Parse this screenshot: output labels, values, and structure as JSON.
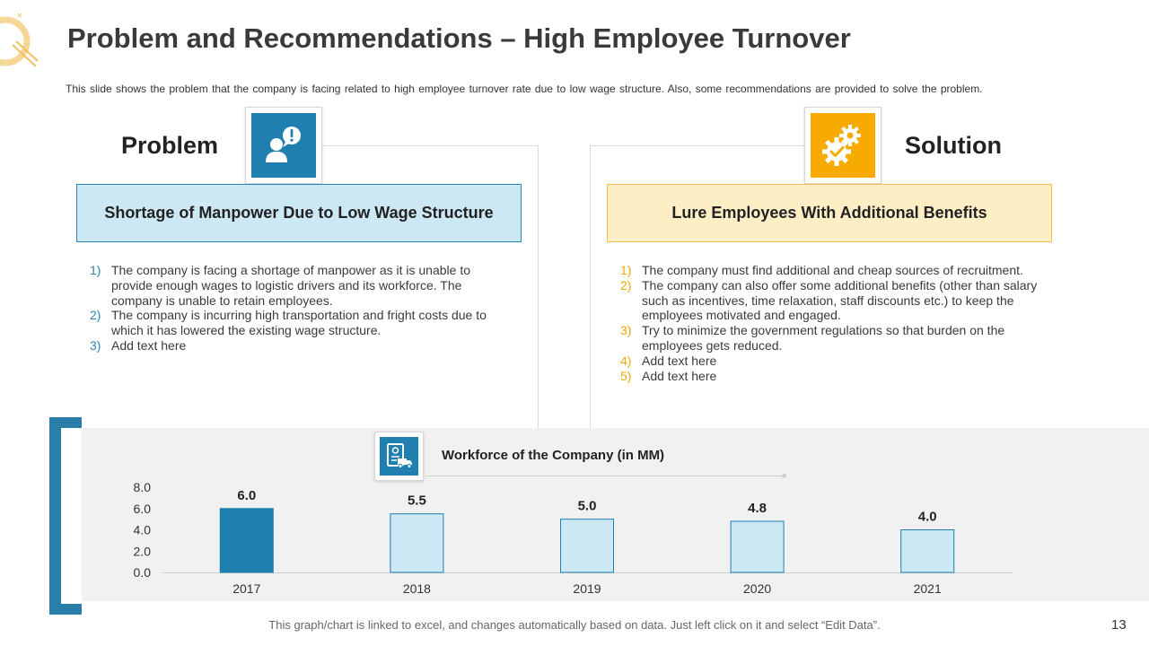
{
  "slide": {
    "title": "Problem and Recommendations – High Employee Turnover",
    "subtitle": "This slide shows the problem that the company is facing related to high employee turnover  rate due to low wage structure. Also, some recommendations  are provided  to solve the problem.",
    "footnote": "This graph/chart is linked to excel,  and changes automatically based on data. Just left click on it and select “Edit Data”.",
    "page_number": "13"
  },
  "problem": {
    "heading": "Problem",
    "icon": "person-exclamation-icon",
    "banner": "Shortage of Manpower Due to Low Wage Structure",
    "items": [
      {
        "num": "1)",
        "text": "The company is facing a shortage of manpower as it is unable to provide enough wages to logistic drivers and its workforce. The company is unable to retain employees."
      },
      {
        "num": "2)",
        "text": "The company is incurring high transportation and fright costs due to which it has lowered the existing wage structure."
      },
      {
        "num": "3)",
        "text": "Add text here"
      }
    ]
  },
  "solution": {
    "heading": "Solution",
    "icon": "gears-check-icon",
    "banner": "Lure Employees With Additional Benefits",
    "items": [
      {
        "num": "1)",
        "text": "The company must find additional and cheap sources of recruitment."
      },
      {
        "num": "2)",
        "text": "The company can also offer some additional benefits (other than salary such as incentives, time relaxation, staff discounts etc.) to keep the employees motivated and engaged."
      },
      {
        "num": "3)",
        "text": "Try to minimize  the government regulations so that burden on the employees gets reduced."
      },
      {
        "num": "4)",
        "text": "Add text here"
      },
      {
        "num": "5)",
        "text": "Add text here"
      }
    ]
  },
  "colors": {
    "primary_blue": "#1f7fae",
    "light_blue": "#cde8f5",
    "accent_yellow": "#f7ab00",
    "light_yellow": "#fdeec6"
  },
  "chart_data": {
    "type": "bar",
    "title": "Workforce of the Company (in MM)",
    "icon": "truck-document-icon",
    "categories": [
      "2017",
      "2018",
      "2019",
      "2020",
      "2021"
    ],
    "values": [
      6.0,
      5.5,
      5.0,
      4.8,
      4.0
    ],
    "value_labels": [
      "6.0",
      "5.5",
      "5.0",
      "4.8",
      "4.0"
    ],
    "highlight_index": 0,
    "y_ticks": [
      "0.0",
      "2.0",
      "4.0",
      "6.0",
      "8.0"
    ],
    "ylim": [
      0,
      8
    ],
    "xlabel": "",
    "ylabel": "",
    "grid": false
  }
}
